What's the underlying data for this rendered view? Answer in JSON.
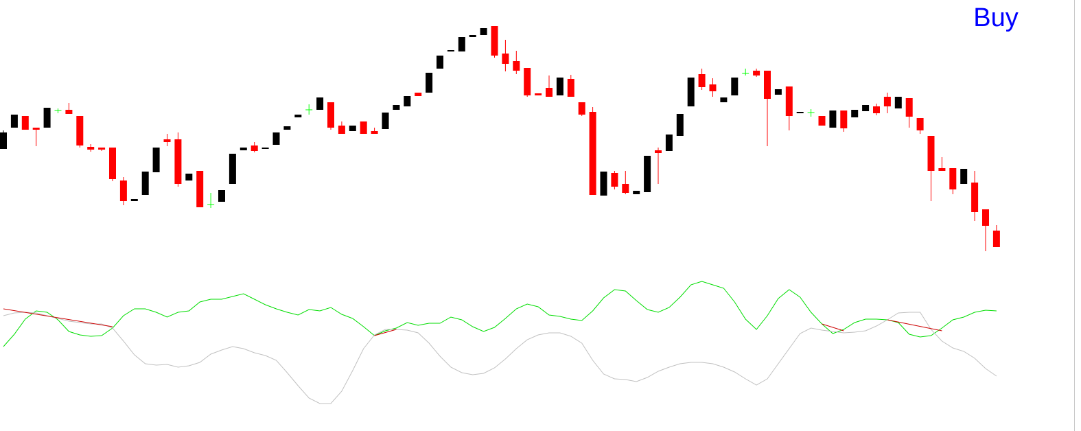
{
  "chart_data": [
    {
      "type": "candlestick",
      "annotation": "Buy",
      "annotation_color": "#0000ff",
      "up_color": "#000000",
      "down_color": "#ff0000",
      "doji_color": "#00ff00",
      "ylim": [
        0,
        400
      ],
      "open": [
        183,
        214,
        231,
        214,
        214,
        239,
        240,
        231,
        186,
        185,
        185,
        137,
        107,
        116,
        149,
        197,
        197,
        137,
        151,
        102,
        106,
        132,
        181,
        188,
        183,
        189,
        211,
        229,
        240,
        240,
        251,
        217,
        209,
        223,
        209,
        212,
        240,
        245,
        265,
        265,
        300,
        325,
        325,
        346,
        349,
        362,
        322,
        311,
        301,
        264,
        272,
        261,
        285,
        251,
        237,
        115,
        148,
        132,
        117,
        120,
        181,
        180,
        202,
        245,
        292,
        277,
        251,
        261,
        293,
        297,
        297,
        262,
        274,
        235,
        236,
        231,
        214,
        239,
        229,
        238,
        245,
        259,
        242,
        257,
        228,
        202,
        155,
        155,
        132,
        134,
        95,
        64
      ],
      "high": [
        210,
        233,
        231,
        214,
        243,
        242,
        250,
        231,
        190,
        185,
        185,
        142,
        110,
        150,
        185,
        205,
        207,
        147,
        151,
        119,
        123,
        176,
        185,
        193,
        185,
        207,
        216,
        233,
        248,
        258,
        251,
        223,
        217,
        223,
        214,
        236,
        247,
        260,
        265,
        294,
        319,
        327,
        346,
        349,
        359,
        362,
        342,
        326,
        301,
        264,
        290,
        287,
        291,
        251,
        244,
        150,
        151,
        151,
        122,
        173,
        185,
        204,
        234,
        287,
        300,
        286,
        258,
        287,
        300,
        300,
        297,
        270,
        274,
        237,
        241,
        231,
        239,
        239,
        240,
        247,
        249,
        265,
        259,
        257,
        228,
        202,
        171,
        155,
        154,
        151,
        95,
        72
      ],
      "low": [
        183,
        214,
        211,
        187,
        214,
        235,
        234,
        185,
        179,
        180,
        136,
        101,
        107,
        116,
        149,
        187,
        128,
        137,
        98,
        97,
        106,
        132,
        181,
        178,
        183,
        189,
        211,
        229,
        233,
        240,
        211,
        205,
        209,
        205,
        205,
        212,
        240,
        245,
        260,
        265,
        300,
        325,
        325,
        346,
        349,
        316,
        296,
        292,
        259,
        261,
        259,
        261,
        259,
        231,
        116,
        115,
        124,
        117,
        117,
        120,
        132,
        180,
        202,
        245,
        269,
        259,
        251,
        261,
        290,
        288,
        187,
        262,
        210,
        235,
        230,
        217,
        214,
        208,
        229,
        238,
        232,
        235,
        242,
        214,
        205,
        107,
        151,
        117,
        132,
        78,
        34,
        40
      ],
      "close": [
        207,
        233,
        211,
        211,
        243,
        239,
        234,
        188,
        182,
        182,
        139,
        107,
        110,
        150,
        185,
        193,
        132,
        147,
        98,
        102,
        123,
        176,
        185,
        180,
        185,
        207,
        216,
        233,
        240,
        258,
        214,
        205,
        217,
        205,
        205,
        236,
        247,
        260,
        260,
        294,
        319,
        327,
        346,
        349,
        359,
        319,
        307,
        297,
        261,
        261,
        259,
        287,
        259,
        233,
        116,
        150,
        128,
        119,
        122,
        173,
        177,
        204,
        234,
        287,
        273,
        267,
        258,
        287,
        293,
        290,
        256,
        270,
        231,
        237,
        236,
        217,
        239,
        213,
        240,
        247,
        235,
        245,
        259,
        230,
        210,
        151,
        151,
        124,
        154,
        91,
        71,
        40
      ]
    },
    {
      "type": "line",
      "ylim": [
        0,
        228
      ],
      "series": [
        {
          "color": "#00dd00",
          "values": [
            123,
            141,
            163,
            175,
            173,
            162,
            145,
            140,
            138,
            139,
            150,
            168,
            178,
            178,
            173,
            166,
            173,
            175,
            188,
            192,
            192,
            196,
            200,
            192,
            184,
            178,
            173,
            169,
            177,
            175,
            180,
            170,
            164,
            152,
            139,
            146,
            150,
            158,
            154,
            157,
            157,
            166,
            162,
            152,
            145,
            151,
            164,
            178,
            185,
            181,
            169,
            167,
            163,
            161,
            175,
            194,
            206,
            204,
            190,
            177,
            173,
            180,
            195,
            213,
            218,
            213,
            208,
            188,
            163,
            148,
            168,
            193,
            206,
            195,
            173,
            156,
            142,
            148,
            158,
            163,
            163,
            162,
            158,
            141,
            137,
            139,
            150,
            162,
            166,
            173,
            176,
            175
          ]
        },
        {
          "color": "#c0c0c0",
          "values": [
            168,
            172,
            173,
            172,
            168,
            164,
            160,
            158,
            156,
            156,
            150,
            131,
            111,
            98,
            96,
            97,
            93,
            95,
            100,
            112,
            118,
            123,
            120,
            114,
            110,
            103,
            85,
            66,
            48,
            40,
            40,
            58,
            88,
            120,
            140,
            148,
            148,
            147,
            143,
            128,
            109,
            93,
            85,
            82,
            84,
            92,
            105,
            120,
            133,
            140,
            143,
            143,
            138,
            128,
            103,
            83,
            76,
            75,
            72,
            78,
            87,
            93,
            98,
            100,
            100,
            98,
            93,
            86,
            76,
            67,
            76,
            98,
            120,
            142,
            150,
            147,
            145,
            143,
            144,
            146,
            153,
            162,
            172,
            173,
            173,
            148,
            131,
            121,
            116,
            106,
            91,
            80
          ]
        }
      ],
      "divergence_color": "#cc0000",
      "divergence_lines": [
        {
          "x": [
            0,
            10
          ],
          "values": [
            178,
            152
          ]
        },
        {
          "x": [
            34,
            36
          ],
          "values": [
            139,
            148
          ]
        },
        {
          "x": [
            75,
            77
          ],
          "values": [
            156,
            146
          ]
        },
        {
          "x": [
            81,
            86
          ],
          "values": [
            162,
            146
          ]
        }
      ]
    }
  ]
}
